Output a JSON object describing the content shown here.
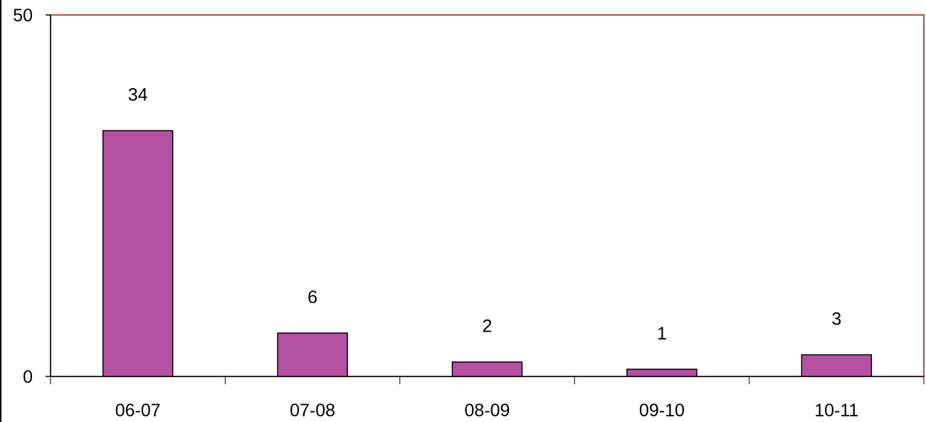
{
  "chart_data": {
    "type": "bar",
    "title": "",
    "xlabel": "",
    "ylabel": "",
    "categories": [
      "06-07",
      "07-08",
      "08-09",
      "09-10",
      "10-11"
    ],
    "values": [
      34,
      6,
      2,
      1,
      3
    ],
    "value_labels": [
      "34",
      "6",
      "2",
      "1",
      "3"
    ],
    "y_ticks": [
      "0",
      "50"
    ],
    "ylim": [
      0,
      50
    ],
    "grid": false,
    "legend": "none",
    "colors": {
      "bar_fill": "#b451a2",
      "bar_stroke": "#000000",
      "plot_border": "#8b1c1c",
      "axis": "#000000",
      "text": "#000000"
    }
  }
}
